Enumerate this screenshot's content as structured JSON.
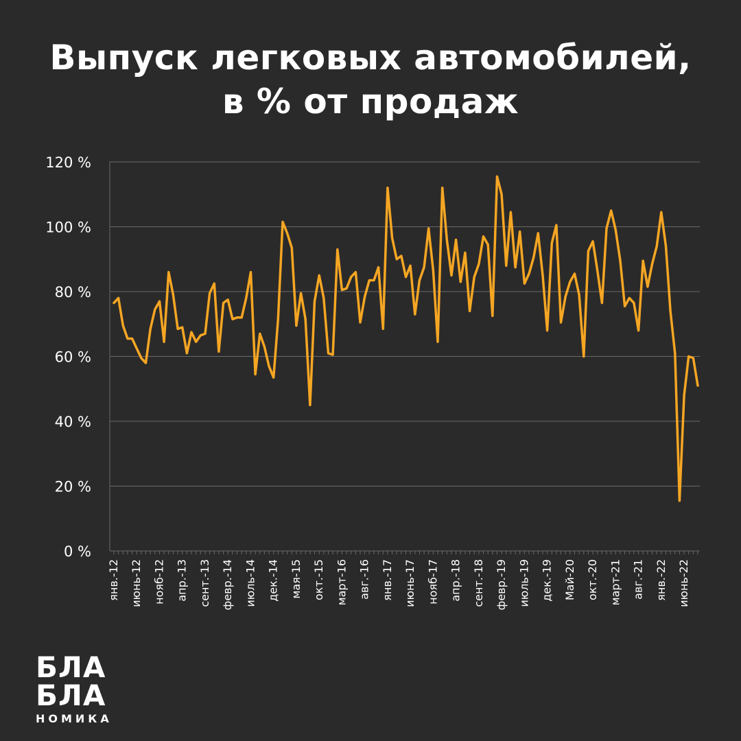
{
  "title": {
    "line1": "Выпуск легковых автомобилей,",
    "line2": "в % от продаж"
  },
  "logo": {
    "line1": "БЛА",
    "line2": "БЛА",
    "line3": "НОМИКА"
  },
  "colors": {
    "background": "#2b2a2a",
    "line": "#f5a623",
    "grid": "#6a6a6a",
    "text": "#ffffff"
  },
  "chart_data": {
    "type": "line",
    "title": "Выпуск легковых автомобилей, в % от продаж",
    "xlabel": "",
    "ylabel": "",
    "ylim": [
      0,
      120
    ],
    "grid": true,
    "y_ticks": [
      "0 %",
      "20 %",
      "40 %",
      "60 %",
      "80 %",
      "100 %",
      "120 %"
    ],
    "x_tick_labels": [
      {
        "label": "янв.-12",
        "index": 0
      },
      {
        "label": "июнь-12",
        "index": 5
      },
      {
        "label": "нояб-12",
        "index": 10
      },
      {
        "label": "апр.-13",
        "index": 15
      },
      {
        "label": "сент.-13",
        "index": 20
      },
      {
        "label": "февр.-14",
        "index": 25
      },
      {
        "label": "июль-14",
        "index": 30
      },
      {
        "label": "дек.-14",
        "index": 35
      },
      {
        "label": "мая-15",
        "index": 40
      },
      {
        "label": "окт.-15",
        "index": 45
      },
      {
        "label": "март-16",
        "index": 50
      },
      {
        "label": "авг.-16",
        "index": 55
      },
      {
        "label": "янв.-17",
        "index": 60
      },
      {
        "label": "июнь-17",
        "index": 65
      },
      {
        "label": "нояб-17",
        "index": 70
      },
      {
        "label": "апр.-18",
        "index": 75
      },
      {
        "label": "сент.-18",
        "index": 80
      },
      {
        "label": "февр.-19",
        "index": 85
      },
      {
        "label": "июль-19",
        "index": 90
      },
      {
        "label": "дек.-19",
        "index": 95
      },
      {
        "label": "Май-20",
        "index": 100
      },
      {
        "label": "окт.-20",
        "index": 105
      },
      {
        "label": "март-21",
        "index": 110
      },
      {
        "label": "авг.-21",
        "index": 115
      },
      {
        "label": "янв.-22",
        "index": 120
      },
      {
        "label": "июнь-22",
        "index": 125
      }
    ],
    "series": [
      {
        "name": "Выпуск легковых автомобилей, в % от продаж",
        "values": [
          76.5,
          78,
          69.5,
          65.5,
          65.5,
          62.5,
          59.5,
          58,
          68.5,
          74.5,
          77,
          64.5,
          86,
          79,
          68.5,
          69,
          61,
          67.5,
          64.5,
          66.5,
          67,
          79.5,
          82.5,
          61.5,
          76.5,
          77.5,
          71.5,
          72,
          72,
          78,
          86,
          54.5,
          67,
          63,
          57,
          53.5,
          71.5,
          101.5,
          98,
          93.5,
          69.5,
          79.5,
          71.5,
          45,
          77,
          85,
          78,
          61,
          60.5,
          93,
          80.5,
          81,
          84.5,
          86,
          70.5,
          78.5,
          83.5,
          83.5,
          87.5,
          68.5,
          112,
          96.5,
          90,
          91,
          84.5,
          88,
          73,
          83.5,
          87.5,
          99.5,
          86.5,
          64.5,
          112,
          96,
          85,
          96,
          83,
          92,
          74,
          84.5,
          88.5,
          97,
          94.5,
          72.5,
          115.5,
          110,
          88,
          104.5,
          87.5,
          98.5,
          82.5,
          85.5,
          90.5,
          98,
          85,
          68,
          95,
          100.5,
          70.5,
          78.5,
          83,
          85.5,
          79,
          60,
          92.5,
          95.5,
          86.5,
          76.5,
          99.5,
          105,
          99,
          89.5,
          75.5,
          78,
          76.5,
          68,
          89.5,
          81.5,
          88.5,
          94,
          104.5,
          94,
          74,
          61,
          15.5,
          48,
          60,
          59.5,
          51
        ]
      }
    ]
  }
}
